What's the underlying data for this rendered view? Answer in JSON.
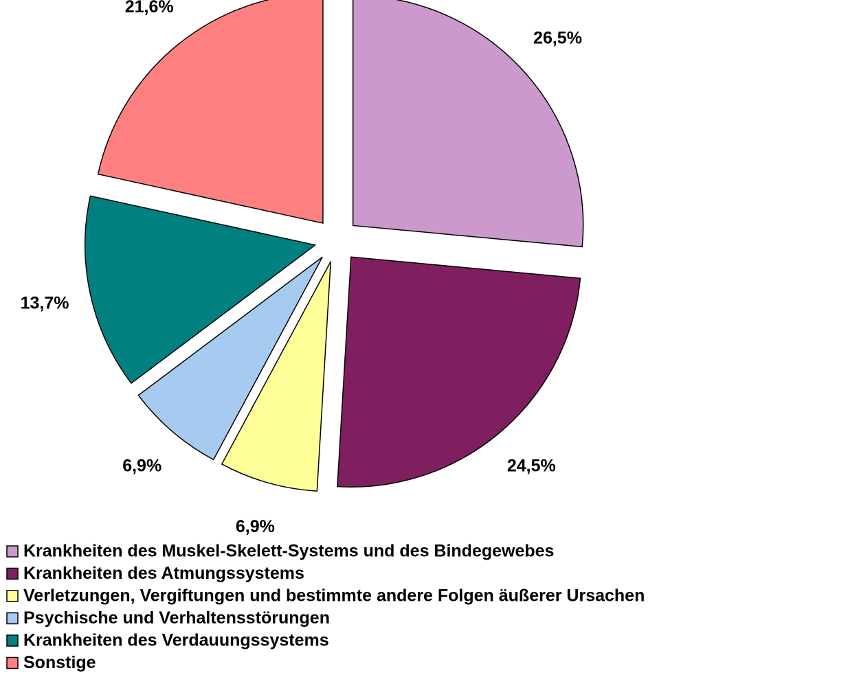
{
  "chart_data": {
    "type": "pie",
    "categories": [
      "Krankheiten des Muskel-Skelett-Systems und des Bindegewebes",
      "Krankheiten des Atmungssystems",
      "Verletzungen, Vergiftungen und bestimmte andere Folgen äußerer Ursachen",
      "Psychische und Verhaltensstörungen",
      "Krankheiten des Verdauungssystems",
      "Sonstige"
    ],
    "values": [
      26.5,
      24.5,
      6.9,
      6.9,
      13.7,
      21.6
    ],
    "value_labels": [
      "26,5%",
      "24,5%",
      "6,9%",
      "6,9%",
      "13,7%",
      "21,6%"
    ],
    "colors": [
      "#cc99cc",
      "#7f1f5f",
      "#ffff99",
      "#a6caf0",
      "#008080",
      "#ff8080"
    ],
    "legend": "bottom-left"
  }
}
